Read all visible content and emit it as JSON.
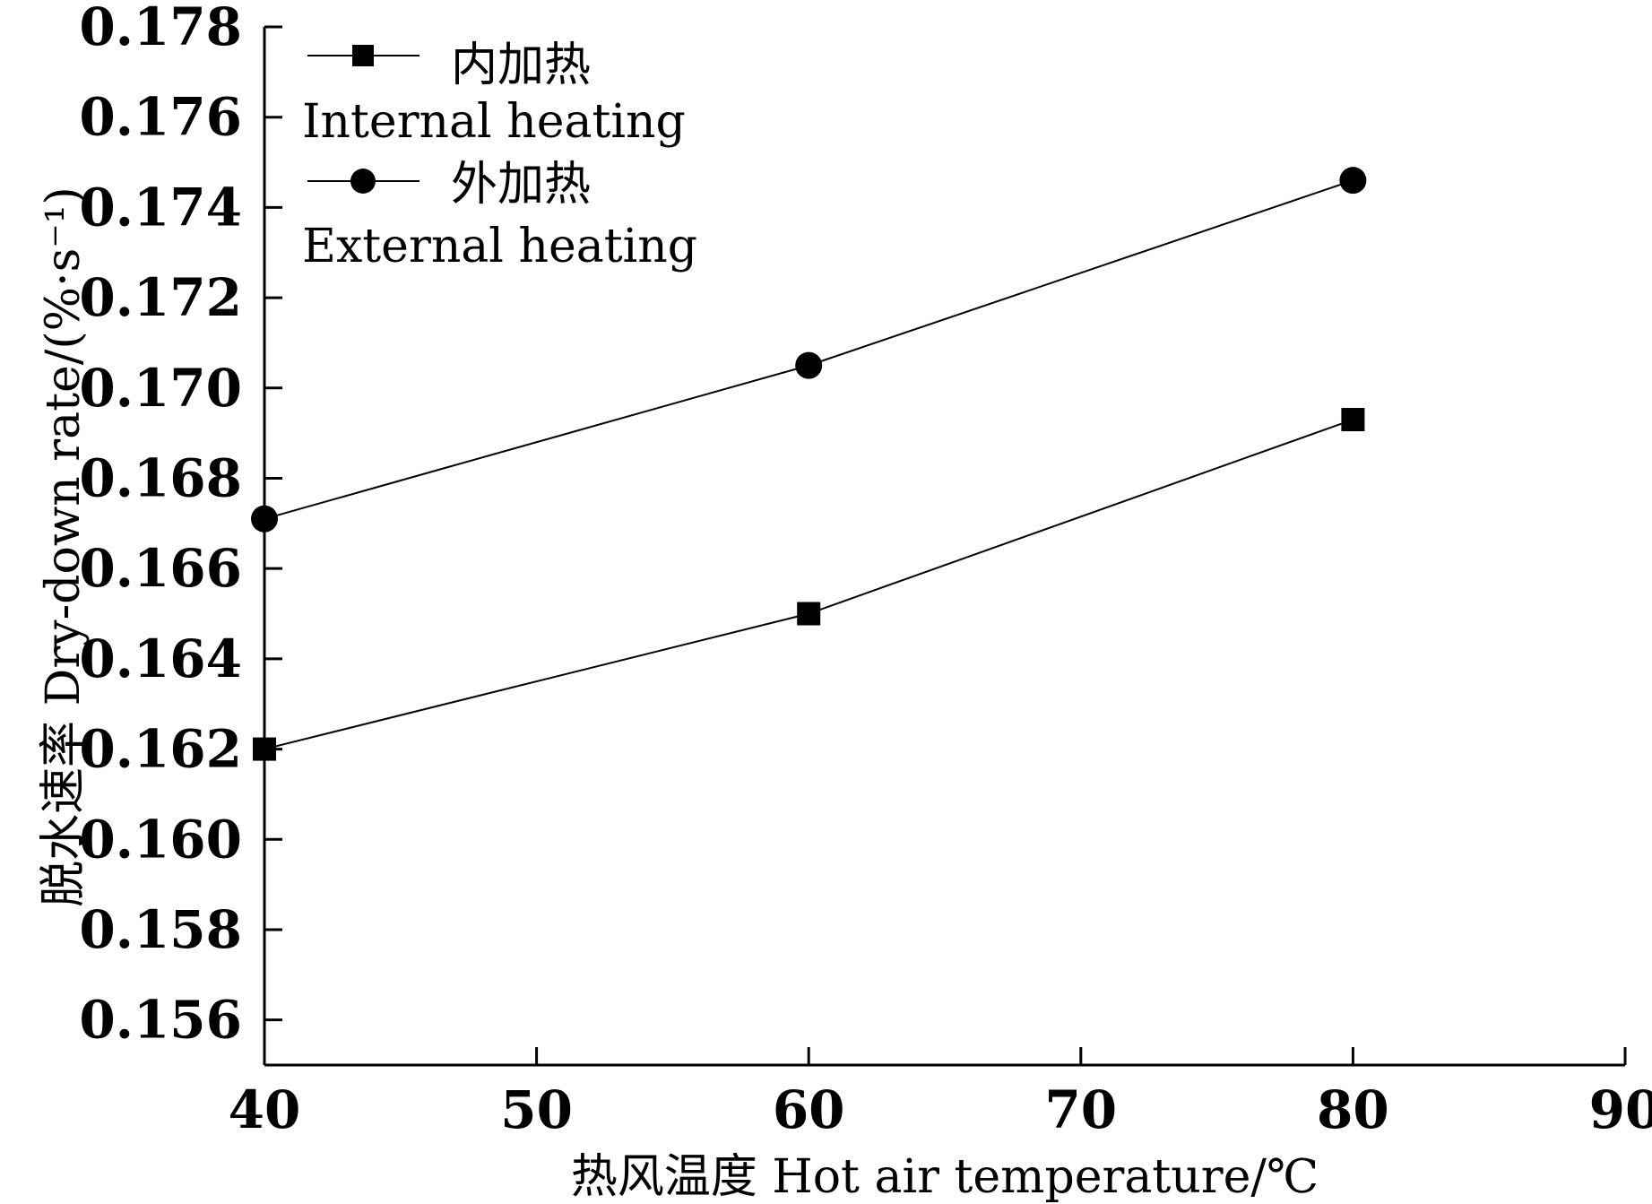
{
  "chart_data": {
    "type": "line",
    "xlabel": "热风温度 Hot air temperature/℃",
    "ylabel": "脱水速率 Dry-down rate/(%·s⁻¹)",
    "xlim": [
      40,
      90
    ],
    "ylim": [
      0.155,
      0.178
    ],
    "xticks": [
      40,
      50,
      60,
      70,
      80,
      90
    ],
    "xtick_labels": [
      "40",
      "50",
      "60",
      "70",
      "80",
      "90"
    ],
    "yticks": [
      0.156,
      0.158,
      0.16,
      0.162,
      0.164,
      0.166,
      0.168,
      0.17,
      0.172,
      0.174,
      0.176,
      0.178
    ],
    "ytick_labels": [
      "0.156",
      "0.158",
      "0.160",
      "0.162",
      "0.164",
      "0.166",
      "0.168",
      "0.170",
      "0.172",
      "0.174",
      "0.176",
      "0.178"
    ],
    "grid": false,
    "legend_position": "top-left",
    "series": [
      {
        "name": "内加热",
        "name_en": "Internal heating",
        "marker": "square",
        "color": "#000000",
        "x": [
          40,
          60,
          80
        ],
        "y": [
          0.162,
          0.165,
          0.1693
        ]
      },
      {
        "name": "外加热",
        "name_en": "External heating",
        "marker": "circle",
        "color": "#000000",
        "x": [
          40,
          60,
          80
        ],
        "y": [
          0.1671,
          0.1705,
          0.1746
        ]
      }
    ]
  }
}
